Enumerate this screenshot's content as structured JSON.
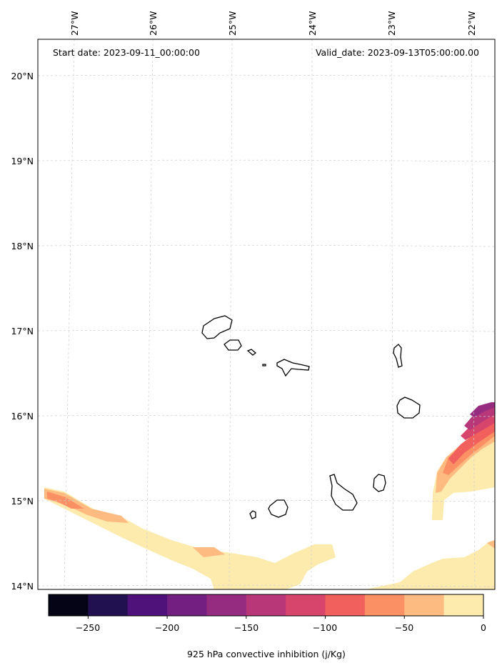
{
  "map": {
    "start_label": "Start date: 2023-09-11_00:00:00",
    "valid_label": "Valid_date: 2023-09-13T05:00:00.00",
    "lon_ticks": [
      "27°W",
      "26°W",
      "25°W",
      "24°W",
      "23°W",
      "22°W"
    ],
    "lat_ticks": [
      "20°N",
      "19°N",
      "18°N",
      "17°N",
      "16°N",
      "15°N",
      "14°N"
    ],
    "gridlines": true
  },
  "colorbar": {
    "label": "925 hPa convective inhibition (j/Kg)",
    "tick_labels": [
      "−250",
      "−200",
      "−150",
      "−100",
      "−50",
      "0"
    ],
    "bins": [
      {
        "from": -275,
        "to": -250,
        "color": "#050416"
      },
      {
        "from": -250,
        "to": -225,
        "color": "#221150"
      },
      {
        "from": -225,
        "to": -200,
        "color": "#4f127b"
      },
      {
        "from": -200,
        "to": -175,
        "color": "#721f81"
      },
      {
        "from": -175,
        "to": -150,
        "color": "#952c80"
      },
      {
        "from": -150,
        "to": -125,
        "color": "#b73779"
      },
      {
        "from": -125,
        "to": -100,
        "color": "#d8456c"
      },
      {
        "from": -100,
        "to": -75,
        "color": "#f1605d"
      },
      {
        "from": -75,
        "to": -50,
        "color": "#fc9065"
      },
      {
        "from": -50,
        "to": -25,
        "color": "#febb81"
      },
      {
        "from": -25,
        "to": 0,
        "color": "#fcebac"
      }
    ]
  }
}
